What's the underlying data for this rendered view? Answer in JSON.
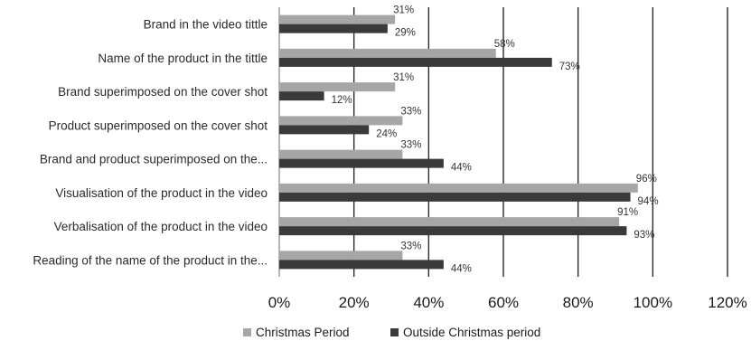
{
  "chart_data": {
    "type": "bar",
    "orientation": "horizontal",
    "categories": [
      "Brand in the video tittle",
      "Name of the product in the tittle",
      "Brand superimposed on the cover shot",
      "Product superimposed on the cover shot",
      "Brand and product superimposed on the...",
      "Visualisation of the product in the video",
      "Verbalisation of the product in the video",
      "Reading of the name of the product in the..."
    ],
    "series": [
      {
        "name": "Christmas Period",
        "color": "#a6a6a6",
        "values": [
          31,
          58,
          31,
          33,
          33,
          96,
          91,
          33
        ],
        "labels": [
          "31%",
          "58%",
          "31%",
          "33%",
          "33%",
          "96%",
          "91%",
          "33%"
        ]
      },
      {
        "name": "Outside Christmas period",
        "color": "#3a3a3a",
        "values": [
          29,
          73,
          12,
          24,
          44,
          94,
          93,
          44
        ],
        "labels": [
          "29%",
          "73%",
          "12%",
          "24%",
          "44%",
          "94%",
          "93%",
          "44%"
        ]
      }
    ],
    "xlim": [
      0,
      120
    ],
    "xticks": [
      0,
      20,
      40,
      60,
      80,
      100,
      120
    ],
    "xtick_labels": [
      "0%",
      "20%",
      "40%",
      "60%",
      "80%",
      "100%",
      "120%"
    ],
    "grid": "vertical",
    "legend_position": "bottom",
    "title": "",
    "xlabel": "",
    "ylabel": ""
  }
}
